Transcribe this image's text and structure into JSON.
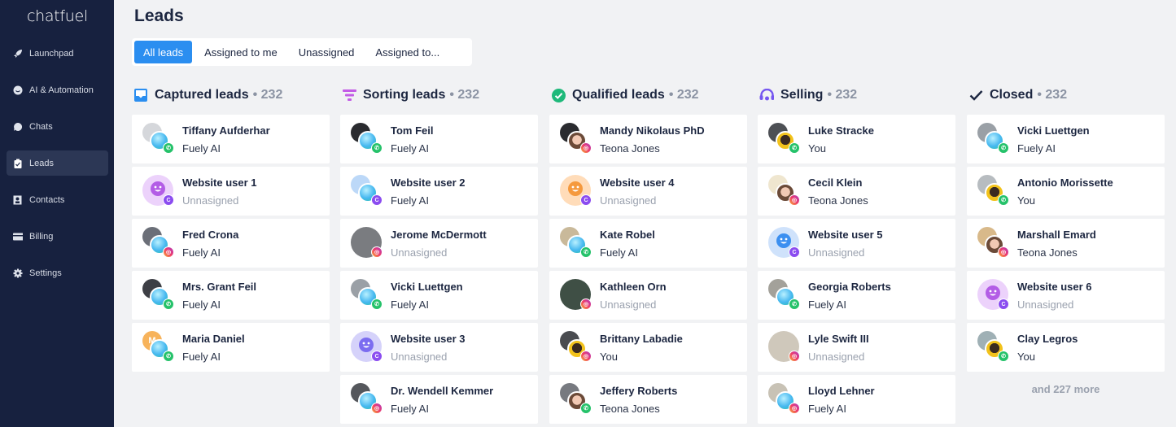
{
  "app": {
    "logo": "chatfuel",
    "title": "Leads"
  },
  "sidebar": {
    "items": [
      {
        "label": "Launchpad",
        "icon": "rocket-icon"
      },
      {
        "label": "AI & Automation",
        "icon": "bot-icon"
      },
      {
        "label": "Chats",
        "icon": "chat-bubble-icon"
      },
      {
        "label": "Leads",
        "icon": "clipboard-check-icon",
        "active": true
      },
      {
        "label": "Contacts",
        "icon": "contact-card-icon"
      },
      {
        "label": "Billing",
        "icon": "credit-card-icon"
      },
      {
        "label": "Settings",
        "icon": "gear-icon"
      }
    ]
  },
  "tabs": [
    {
      "label": "All leads",
      "active": true
    },
    {
      "label": "Assigned to me"
    },
    {
      "label": "Unassigned"
    },
    {
      "label": "Assigned to..."
    }
  ],
  "colors": {
    "accent": "#2b8ef0",
    "sidebar": "#17213f",
    "whatsapp": "#25c26a",
    "instagram": "#f0466a",
    "chatfuel": "#8b4cf0"
  },
  "columns": [
    {
      "title": "Captured leads",
      "count": "232",
      "icon": "inbox-icon",
      "cards": [
        {
          "name": "Tiffany Aufderhar",
          "assignee": "Fuely AI",
          "who": "ai",
          "channel": "whatsapp",
          "photo": "#d5d7db"
        },
        {
          "name": "Website user 1",
          "assignee": "Unnasigned",
          "who": "none",
          "channel": "chatfuel",
          "web": "purple"
        },
        {
          "name": "Fred Crona",
          "assignee": "Fuely AI",
          "who": "ai",
          "channel": "instagram",
          "photo": "#6b6f78"
        },
        {
          "name": "Mrs. Grant Feil",
          "assignee": "Fuely AI",
          "who": "ai",
          "channel": "whatsapp",
          "photo": "#3d3f45"
        },
        {
          "name": "Maria Daniel",
          "assignee": "Fuely AI",
          "who": "ai",
          "channel": "whatsapp",
          "photo": "#f7b35b",
          "initial": "M"
        }
      ]
    },
    {
      "title": "Sorting leads",
      "count": "232",
      "icon": "funnel-icon",
      "cards": [
        {
          "name": "Tom Feil",
          "assignee": "Fuely AI",
          "who": "ai",
          "channel": "whatsapp",
          "photo": "#2a2b2f"
        },
        {
          "name": "Website user 2",
          "assignee": "Fuely AI",
          "who": "ai",
          "channel": "chatfuel",
          "photo": "#bcd8f8"
        },
        {
          "name": "Jerome McDermott",
          "assignee": "Unnasigned",
          "who": "none",
          "channel": "instagram",
          "bigphoto": "#7a7c80"
        },
        {
          "name": "Vicki Luettgen",
          "assignee": "Fuely AI",
          "who": "ai",
          "channel": "whatsapp",
          "photo": "#9aa0a6"
        },
        {
          "name": "Website user 3",
          "assignee": "Unnasigned",
          "who": "none",
          "channel": "chatfuel",
          "web": "indigo"
        },
        {
          "name": "Dr. Wendell Kemmer",
          "assignee": "Fuely AI",
          "who": "ai",
          "channel": "instagram",
          "photo": "#55575c"
        }
      ]
    },
    {
      "title": "Qualified leads",
      "count": "232",
      "icon": "check-circle-icon",
      "cards": [
        {
          "name": "Mandy Nikolaus PhD",
          "assignee": "Teona Jones",
          "who": "teona",
          "channel": "instagram",
          "photo": "#2a2b2f"
        },
        {
          "name": "Website user 4",
          "assignee": "Unnasigned",
          "who": "none",
          "channel": "chatfuel",
          "web": "orange"
        },
        {
          "name": "Kate Robel",
          "assignee": "Fuely AI",
          "who": "ai",
          "channel": "whatsapp",
          "photo": "#c9b99a"
        },
        {
          "name": "Kathleen Orn",
          "assignee": "Unnasigned",
          "who": "none",
          "channel": "instagram",
          "bigphoto": "#3f4f45"
        },
        {
          "name": "Brittany Labadie",
          "assignee": "You",
          "who": "you",
          "channel": "instagram",
          "photo": "#4a4c50"
        },
        {
          "name": "Jeffery Roberts",
          "assignee": "Teona Jones",
          "who": "teona",
          "channel": "whatsapp",
          "photo": "#777a80"
        }
      ]
    },
    {
      "title": "Selling",
      "count": "232",
      "icon": "headset-icon",
      "cards": [
        {
          "name": "Luke Stracke",
          "assignee": "You",
          "who": "you",
          "channel": "whatsapp",
          "photo": "#4d5055"
        },
        {
          "name": "Cecil Klein",
          "assignee": "Teona Jones",
          "who": "teona",
          "channel": "instagram",
          "photo": "#efe6cf"
        },
        {
          "name": "Website user 5",
          "assignee": "Unnasigned",
          "who": "none",
          "channel": "chatfuel",
          "web": "blue"
        },
        {
          "name": "Georgia Roberts",
          "assignee": "Fuely AI",
          "who": "ai",
          "channel": "whatsapp",
          "photo": "#a3a19a"
        },
        {
          "name": "Lyle Swift III",
          "assignee": "Unnasigned",
          "who": "none",
          "channel": "instagram",
          "bigphoto": "#cfc8bb"
        },
        {
          "name": "Lloyd Lehner",
          "assignee": "Fuely AI",
          "who": "ai",
          "channel": "instagram",
          "photo": "#c8c2b5"
        }
      ]
    },
    {
      "title": "Closed",
      "count": "232",
      "icon": "checkmark-icon",
      "more": "and 227 more",
      "cards": [
        {
          "name": "Vicki Luettgen",
          "assignee": "Fuely AI",
          "who": "ai",
          "channel": "whatsapp",
          "photo": "#9aa0a6"
        },
        {
          "name": "Antonio Morissette",
          "assignee": "You",
          "who": "you",
          "channel": "whatsapp",
          "photo": "#b7bcc0"
        },
        {
          "name": "Marshall Emard",
          "assignee": "Teona Jones",
          "who": "teona",
          "channel": "instagram",
          "photo": "#d8b98a"
        },
        {
          "name": "Website user 6",
          "assignee": "Unnasigned",
          "who": "none",
          "channel": "chatfuel",
          "web": "purple"
        },
        {
          "name": "Clay Legros",
          "assignee": "You",
          "who": "you",
          "channel": "whatsapp",
          "photo": "#9fb0b5"
        }
      ]
    }
  ]
}
